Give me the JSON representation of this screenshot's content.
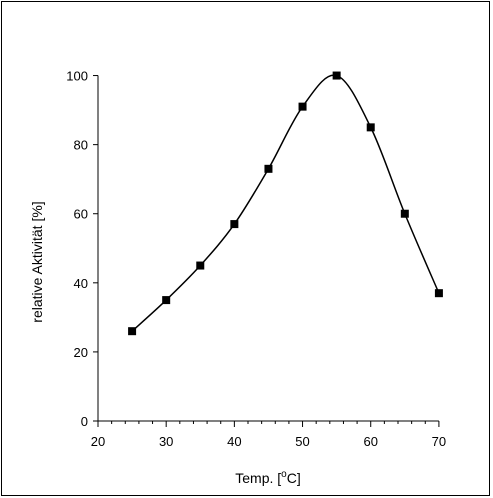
{
  "chart_data": {
    "type": "line",
    "title": "",
    "xlabel": "Temp. [",
    "xlabel_unit_sup": "o",
    "xlabel_unit": "C]",
    "ylabel": "relative Aktivität [%]",
    "x": [
      25,
      30,
      35,
      40,
      45,
      50,
      55,
      60,
      65,
      70
    ],
    "series": [
      {
        "values": [
          26,
          35,
          45,
          57,
          73,
          91,
          100,
          85,
          60,
          37
        ],
        "marker": "square",
        "color": "#000000"
      }
    ],
    "xlim": [
      20,
      75
    ],
    "ylim": [
      0,
      110
    ],
    "x_ticks": [
      20,
      30,
      40,
      50,
      60,
      70
    ],
    "x_tick_labels": [
      "20",
      "30",
      "40",
      "50",
      "60",
      "70"
    ],
    "y_ticks": [
      0,
      20,
      40,
      60,
      80,
      100
    ],
    "y_tick_labels": [
      "0",
      "20",
      "40",
      "60",
      "80",
      "100"
    ],
    "x_minor_step": 2,
    "grid": false,
    "legend": "none",
    "curve": "smooth"
  }
}
